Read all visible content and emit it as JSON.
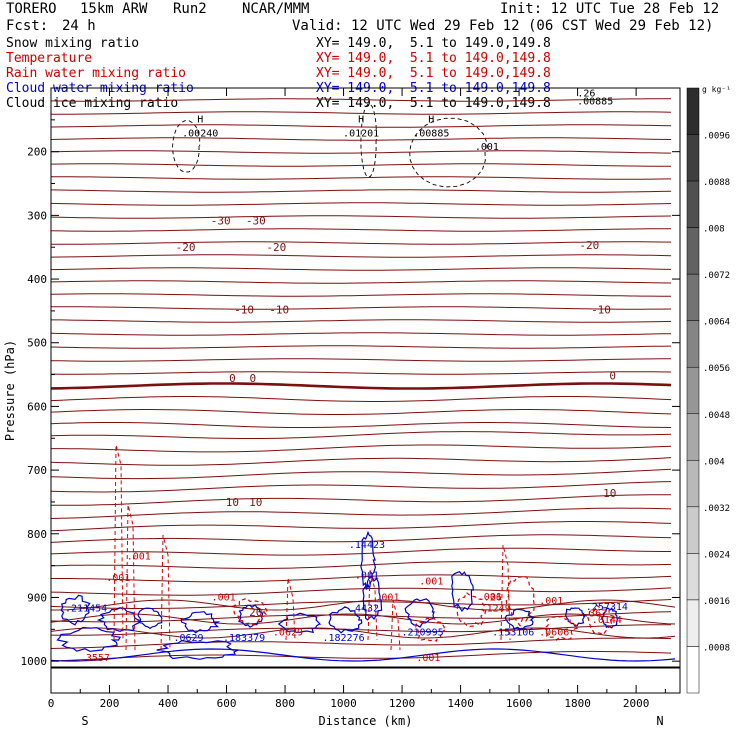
{
  "header": {
    "model": "TORERO",
    "resolution": "15km ARW",
    "run": "Run2",
    "org": "NCAR/MMM",
    "init": "Init: 12 UTC Tue 28 Feb 12",
    "fcst_label": "Fcst:",
    "fcst_value": "24 h",
    "valid": "Valid: 12 UTC Wed 29 Feb 12 (06 CST Wed 29 Feb 12)"
  },
  "legend": [
    {
      "name": "Snow mixing ratio",
      "xy": "XY= 149.0,  5.1 to 149.0,149.8",
      "color": "#000000"
    },
    {
      "name": "Temperature",
      "xy": "XY= 149.0,  5.1 to 149.0,149.8",
      "color": "#cc0000"
    },
    {
      "name": "Rain water mixing ratio",
      "xy": "XY= 149.0,  5.1 to 149.0,149.8",
      "color": "#cc0000"
    },
    {
      "name": "Cloud water mixing ratio",
      "xy": "XY= 149.0,  5.1 to 149.0,149.8",
      "color": "#0000cc"
    },
    {
      "name": "Cloud ice mixing ratio",
      "xy": "XY= 149.0,  5.1 to 149.0,149.8",
      "color": "#000000"
    }
  ],
  "chart_data": {
    "type": "cross-section contour",
    "xlabel": "Distance (km)",
    "ylabel": "Pressure (hPa)",
    "xlim": [
      0,
      2150
    ],
    "ylim": [
      1050,
      100
    ],
    "x_ticks": [
      0,
      200,
      400,
      600,
      800,
      1000,
      1200,
      1400,
      1600,
      1800,
      2000
    ],
    "y_ticks": [
      200,
      300,
      400,
      500,
      600,
      700,
      800,
      900,
      1000
    ],
    "endpoints": {
      "left": "S",
      "right": "N"
    },
    "colorbar": {
      "unit": "g kg⁻¹",
      "labels": [
        ".0096",
        ".0088",
        ".008",
        ".0072",
        ".0064",
        ".0056",
        ".0048",
        ".004",
        ".0032",
        ".0024",
        ".0016",
        ".0008"
      ]
    },
    "temperature_labels": [
      {
        "text": "-30",
        "x": 580,
        "p": 314
      },
      {
        "text": "-30",
        "x": 700,
        "p": 314
      },
      {
        "text": "-20",
        "x": 460,
        "p": 356
      },
      {
        "text": "-20",
        "x": 770,
        "p": 356
      },
      {
        "text": "-20",
        "x": 1840,
        "p": 353
      },
      {
        "text": "-10",
        "x": 660,
        "p": 454
      },
      {
        "text": "-10",
        "x": 780,
        "p": 454
      },
      {
        "text": "-10",
        "x": 1880,
        "p": 454
      },
      {
        "text": "0",
        "x": 620,
        "p": 562
      },
      {
        "text": "0",
        "x": 690,
        "p": 562
      },
      {
        "text": "0",
        "x": 1920,
        "p": 558
      },
      {
        "text": "10",
        "x": 620,
        "p": 756
      },
      {
        "text": "10",
        "x": 700,
        "p": 756
      },
      {
        "text": "10",
        "x": 1910,
        "p": 742
      },
      {
        "text": "20",
        "x": 700,
        "p": 929
      }
    ],
    "ice_labels": [
      {
        "text": "H",
        "x": 510,
        "p": 176,
        "value": ".00240"
      },
      {
        "text": "H",
        "x": 1060,
        "p": 176,
        "value": ".01201"
      },
      {
        "text": "H",
        "x": 1300,
        "p": 176,
        "value": ".00885"
      }
    ],
    "ice_extra": [
      {
        "text": ".001",
        "x": 1490,
        "p": 197
      },
      {
        "text": ".00885",
        "x": 1860,
        "p": 126
      },
      {
        "text": ".26",
        "x": 1830,
        "p": 113
      }
    ],
    "cloud_water_labels": [
      {
        "text": ".14423",
        "x": 1080,
        "p": 822
      },
      {
        "text": ".001",
        "x": 1080,
        "p": 870
      },
      {
        "text": ".211454",
        "x": 120,
        "p": 922
      },
      {
        "text": ".0629",
        "x": 470,
        "p": 968
      },
      {
        "text": ".183379",
        "x": 660,
        "p": 968
      },
      {
        "text": ".182276",
        "x": 1000,
        "p": 968
      },
      {
        "text": ".210995",
        "x": 1270,
        "p": 960
      },
      {
        "text": ".153106",
        "x": 1580,
        "p": 960
      },
      {
        "text": ".257314",
        "x": 1900,
        "p": 920
      },
      {
        "text": ".4432",
        "x": 1070,
        "p": 922
      }
    ],
    "rain_labels": [
      {
        "text": ".001",
        "x": 300,
        "p": 840
      },
      {
        "text": ".001",
        "x": 230,
        "p": 874
      },
      {
        "text": ".001",
        "x": 590,
        "p": 905
      },
      {
        "text": ".001",
        "x": 1300,
        "p": 880
      },
      {
        "text": ".001",
        "x": 1150,
        "p": 905
      },
      {
        "text": ".001",
        "x": 1500,
        "p": 904
      },
      {
        "text": ".001",
        "x": 1710,
        "p": 910
      },
      {
        "text": ".0629",
        "x": 810,
        "p": 960
      },
      {
        "text": ".1249",
        "x": 1520,
        "p": 922
      },
      {
        "text": ".0606",
        "x": 1720,
        "p": 960
      },
      {
        "text": ".0144",
        "x": 1900,
        "p": 940
      },
      {
        "text": ".367",
        "x": 1860,
        "p": 930
      },
      {
        "text": ".3557",
        "x": 150,
        "p": 1000
      },
      {
        "text": ".001",
        "x": 1290,
        "p": 1000
      },
      {
        "text": ".26",
        "x": 1510,
        "p": 905
      }
    ]
  }
}
